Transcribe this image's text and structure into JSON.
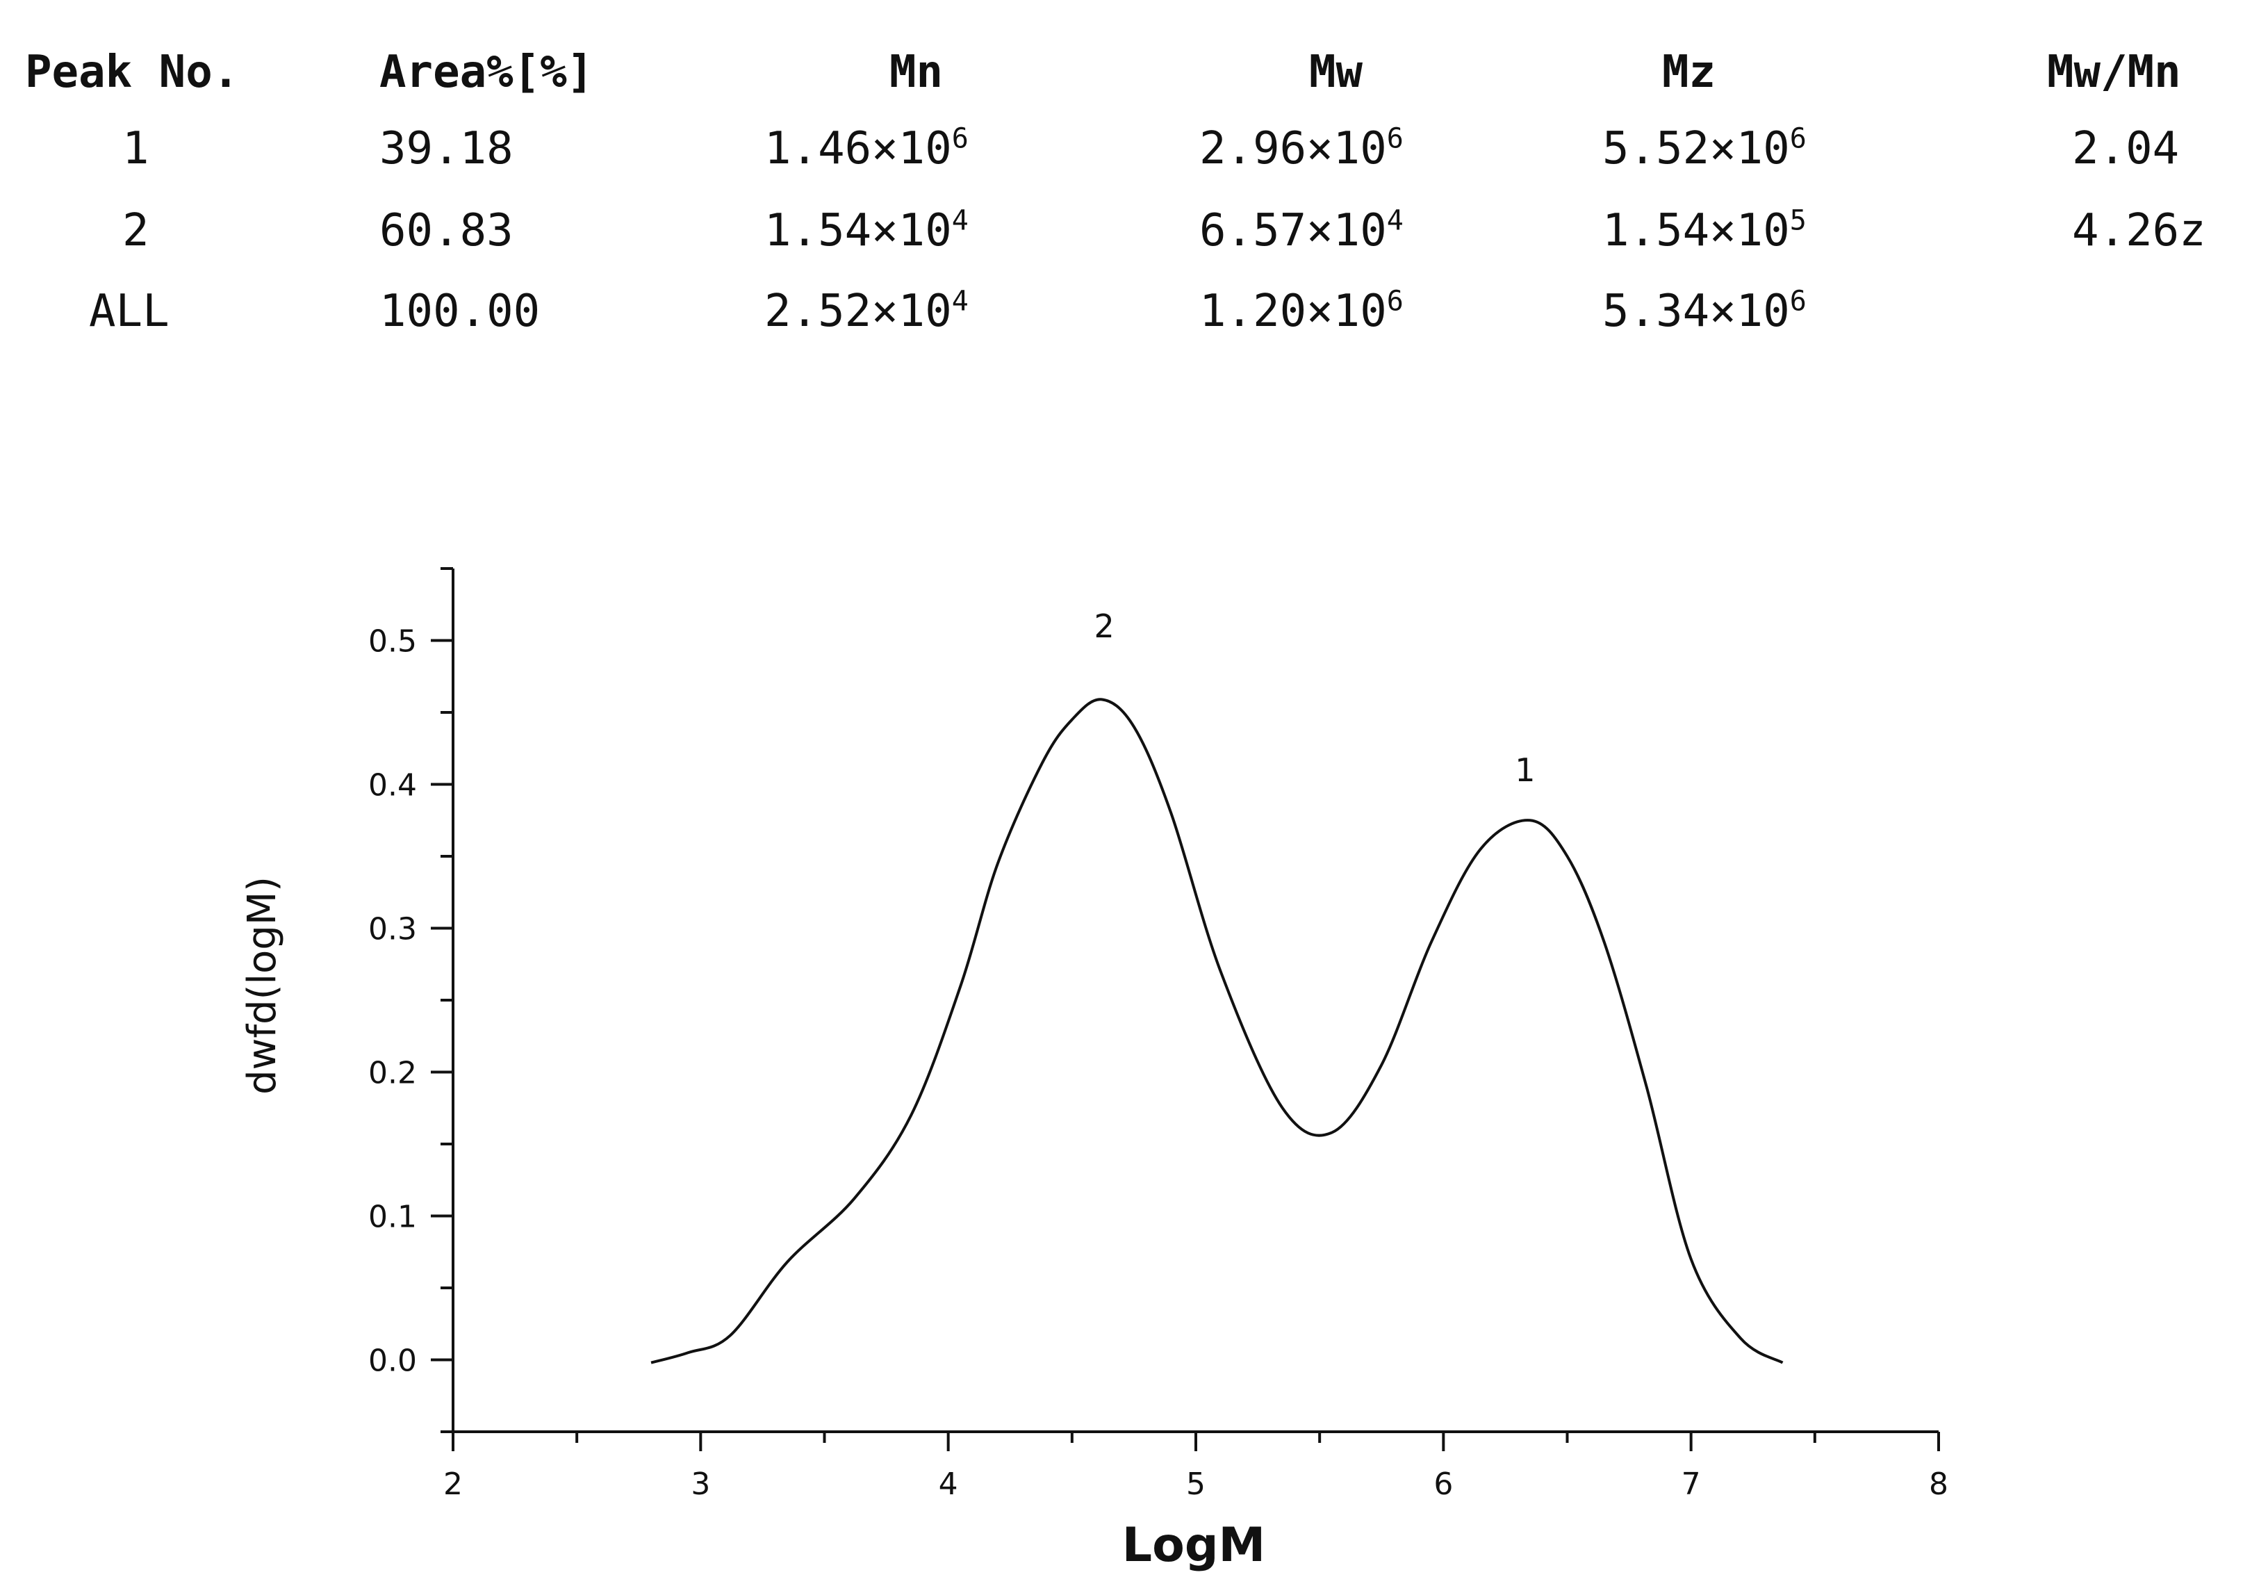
{
  "table": {
    "headers": [
      "Peak No.",
      "Area%[%]",
      "Mn",
      "Mw",
      "Mz",
      "Mw/Mn"
    ],
    "rows": [
      {
        "peak": "1",
        "area": "39.18",
        "mn": {
          "mantissa": "1.46",
          "base": "×10",
          "exp": "6"
        },
        "mw": {
          "mantissa": "2.96",
          "base": "×10",
          "exp": "6"
        },
        "mz": {
          "mantissa": "5.52",
          "base": "×10",
          "exp": "6"
        },
        "ratio": "2.04"
      },
      {
        "peak": "2",
        "area": "60.83",
        "mn": {
          "mantissa": "1.54",
          "base": "×10",
          "exp": "4"
        },
        "mw": {
          "mantissa": "6.57",
          "base": "×10",
          "exp": "4"
        },
        "mz": {
          "mantissa": "1.54",
          "base": "×10",
          "exp": "5"
        },
        "ratio": "4.26z"
      },
      {
        "peak": "ALL",
        "area": "100.00",
        "mn": {
          "mantissa": "2.52",
          "base": "×10",
          "exp": "4"
        },
        "mw": {
          "mantissa": "1.20",
          "base": "×10",
          "exp": "6"
        },
        "mz": {
          "mantissa": "5.34",
          "base": "×10",
          "exp": "6"
        },
        "ratio": ""
      }
    ]
  },
  "chart_data": {
    "type": "line",
    "title": "",
    "xlabel": "LogM",
    "ylabel": "dwfd(logM)",
    "xlim": [
      2,
      8
    ],
    "ylim": [
      -0.05,
      0.55
    ],
    "xticks": [
      "2",
      "3",
      "4",
      "5",
      "6",
      "7",
      "8"
    ],
    "yticks": [
      "0.0",
      "0.1",
      "0.2",
      "0.3",
      "0.4",
      "0.5"
    ],
    "grid": false,
    "series": [
      {
        "x": [
          2.8,
          2.95,
          3.12,
          3.35,
          3.62,
          3.85,
          4.05,
          4.2,
          4.38,
          4.5,
          4.62,
          4.75,
          4.9,
          5.1,
          5.35,
          5.55,
          5.75,
          5.95,
          6.15,
          6.35,
          6.5,
          6.65,
          6.82,
          7.0,
          7.2,
          7.37
        ],
        "y": [
          -0.002,
          0.005,
          0.017,
          0.068,
          0.112,
          0.17,
          0.26,
          0.345,
          0.415,
          0.445,
          0.459,
          0.44,
          0.38,
          0.27,
          0.175,
          0.158,
          0.205,
          0.29,
          0.355,
          0.375,
          0.35,
          0.29,
          0.19,
          0.07,
          0.015,
          -0.002
        ]
      }
    ],
    "annotations": [
      {
        "text": "2",
        "x": 4.63,
        "y": 0.51
      },
      {
        "text": "1",
        "x": 6.33,
        "y": 0.41
      }
    ]
  }
}
